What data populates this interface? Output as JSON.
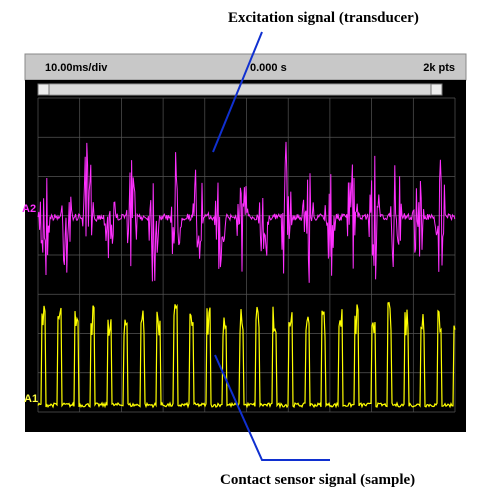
{
  "annotations": {
    "top": "Excitation signal (transducer)",
    "bottom": "Contact sensor signal (sample)"
  },
  "scope": {
    "timebase": "10.00ms/div",
    "delay": "0.000 s",
    "points": "2k pts",
    "channels": [
      "A2",
      "A1"
    ]
  }
}
